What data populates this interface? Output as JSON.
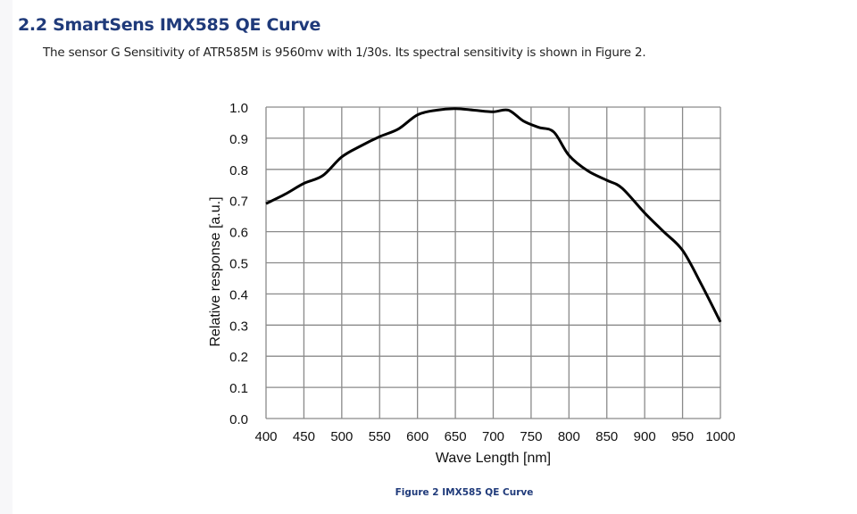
{
  "section": {
    "title": "2.2 SmartSens IMX585 QE Curve",
    "paragraph": "The sensor G Sensitivity of ATR585M is 9560mv with 1/30s. Its spectral sensitivity is shown in Figure 2."
  },
  "figure_caption": "Figure 2 IMX585 QE Curve",
  "chart_data": {
    "type": "line",
    "title": "",
    "xlabel": "Wave Length [nm]",
    "ylabel": "Relative response [a.u.]",
    "xlim": [
      400,
      1000
    ],
    "ylim": [
      0,
      1.0
    ],
    "grid": true,
    "x_ticks": [
      "400",
      "450",
      "500",
      "550",
      "600",
      "650",
      "700",
      "750",
      "800",
      "850",
      "900",
      "950",
      "1000"
    ],
    "y_ticks": [
      "0.0",
      "0.1",
      "0.2",
      "0.3",
      "0.4",
      "0.5",
      "0.6",
      "0.7",
      "0.8",
      "0.9",
      "1.0"
    ],
    "series": [
      {
        "name": "QE",
        "color": "#000000",
        "x": [
          400,
          425,
          450,
          475,
          500,
          525,
          550,
          575,
          600,
          625,
          650,
          675,
          700,
          720,
          740,
          760,
          780,
          800,
          825,
          850,
          870,
          900,
          925,
          950,
          975,
          1000
        ],
        "y": [
          0.69,
          0.72,
          0.755,
          0.78,
          0.84,
          0.875,
          0.905,
          0.93,
          0.975,
          0.99,
          0.995,
          0.99,
          0.985,
          0.99,
          0.955,
          0.935,
          0.92,
          0.845,
          0.795,
          0.765,
          0.74,
          0.66,
          0.6,
          0.54,
          0.43,
          0.31
        ]
      }
    ]
  }
}
